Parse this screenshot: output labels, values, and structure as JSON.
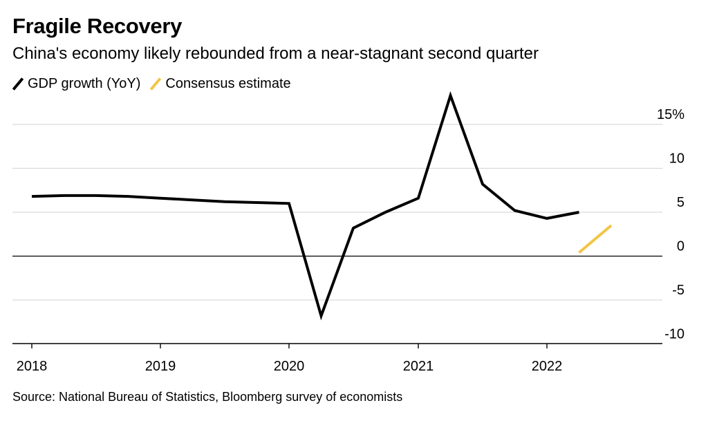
{
  "title": "Fragile Recovery",
  "subtitle": "China's economy likely rebounded from a near-stagnant second quarter",
  "legend": [
    {
      "label": "GDP growth (YoY)",
      "color": "#000000"
    },
    {
      "label": "Consensus estimate",
      "color": "#f2c545"
    }
  ],
  "source": "Source: National Bureau of Statistics, Bloomberg survey of economists",
  "chart_data": {
    "type": "line",
    "title": "Fragile Recovery",
    "subtitle": "China's economy likely rebounded from a near-stagnant second quarter",
    "xlabel": "",
    "ylabel": "",
    "x_ticks": [
      "2018",
      "2019",
      "2020",
      "2021",
      "2022"
    ],
    "y_ticks": [
      "15%",
      "10",
      "5",
      "0",
      "-5",
      "-10"
    ],
    "ylim": [
      -10,
      17.5
    ],
    "grid": "horizontal",
    "legend_position": "top-left",
    "series": [
      {
        "name": "GDP growth (YoY)",
        "color": "#000000",
        "x": [
          "2018-Q1",
          "2018-Q2",
          "2018-Q3",
          "2018-Q4",
          "2019-Q1",
          "2019-Q2",
          "2019-Q3",
          "2019-Q4",
          "2020-Q1",
          "2020-Q2",
          "2020-Q3",
          "2020-Q4",
          "2021-Q1",
          "2021-Q2",
          "2021-Q3",
          "2021-Q4",
          "2022-Q1",
          "2022-Q2"
        ],
        "values": [
          6.8,
          6.9,
          6.9,
          6.8,
          6.6,
          6.4,
          6.2,
          6.1,
          6.0,
          -6.8,
          3.2,
          5.0,
          6.6,
          18.3,
          8.2,
          5.2,
          4.3,
          5.0
        ]
      },
      {
        "name": "Consensus estimate",
        "color": "#f2c545",
        "x": [
          "2022-Q2",
          "2022-Q3"
        ],
        "values": [
          0.4,
          3.5
        ]
      }
    ]
  }
}
